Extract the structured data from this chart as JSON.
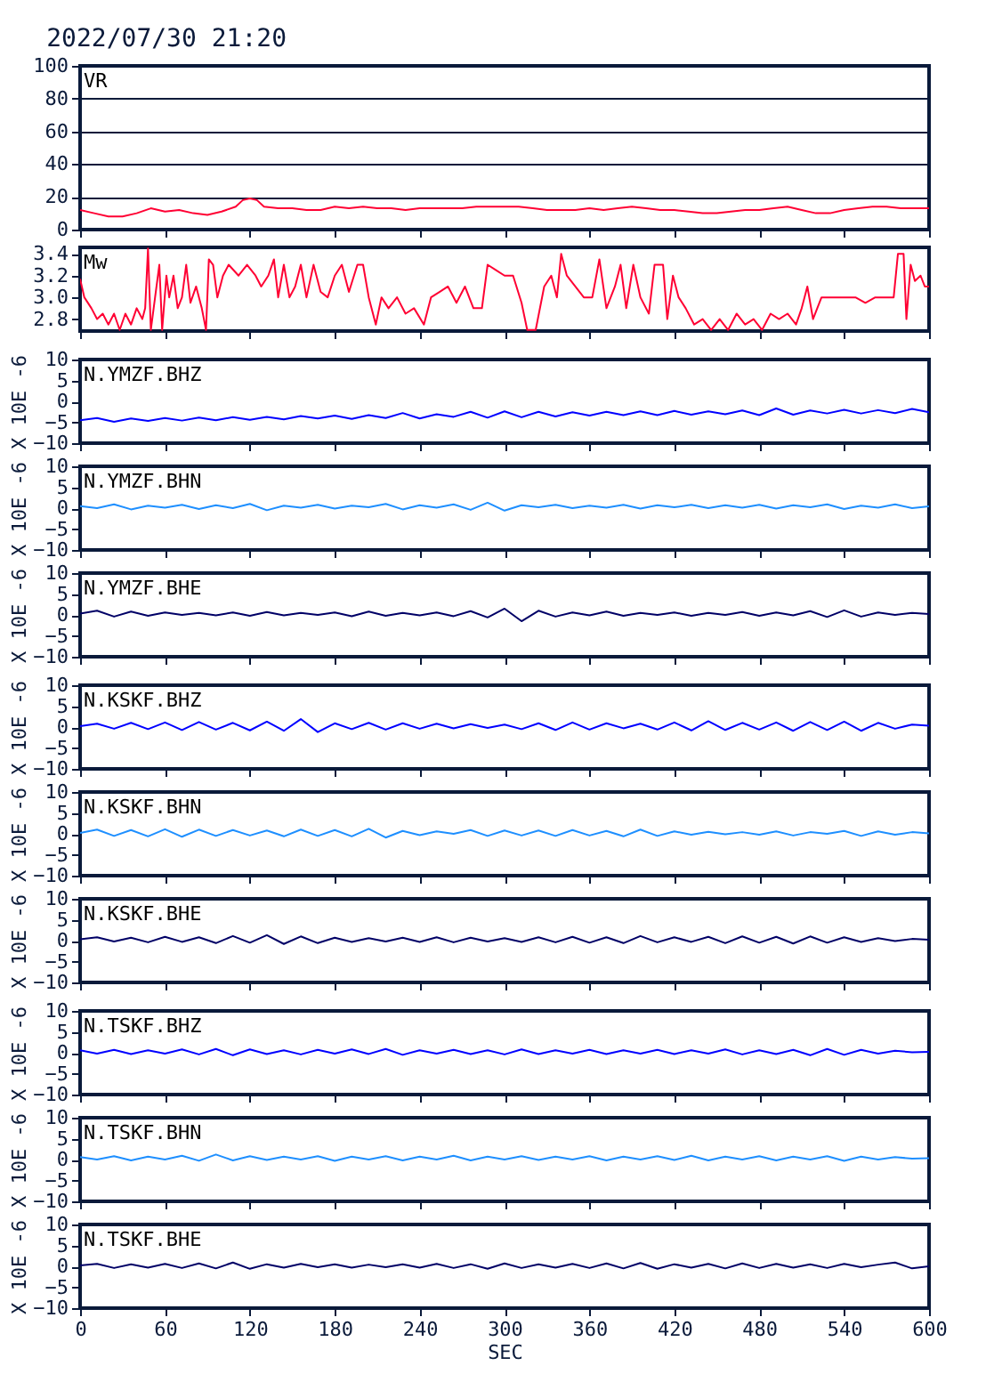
{
  "chart_data": [
    {
      "type": "line",
      "title": "2022/07/30 21:20",
      "x": [
        0,
        10,
        20,
        30,
        40,
        50,
        60,
        70,
        80,
        90,
        100,
        110,
        115,
        120,
        125,
        130,
        140,
        150,
        160,
        170,
        180,
        190,
        200,
        210,
        220,
        230,
        240,
        250,
        260,
        270,
        280,
        290,
        300,
        310,
        320,
        330,
        340,
        350,
        360,
        370,
        380,
        390,
        400,
        410,
        420,
        430,
        440,
        450,
        460,
        470,
        480,
        490,
        500,
        510,
        520,
        530,
        540,
        550,
        560,
        570,
        580,
        590,
        600
      ],
      "annotations": [
        "VR"
      ],
      "series": [
        {
          "color": "#ff0033",
          "values": [
            12,
            10,
            8,
            8,
            10,
            13,
            11,
            12,
            10,
            9,
            11,
            14,
            18,
            19,
            18,
            14,
            13,
            13,
            12,
            12,
            14,
            13,
            14,
            13,
            13,
            12,
            13,
            13,
            13,
            13,
            14,
            14,
            14,
            14,
            13,
            12,
            12,
            12,
            13,
            12,
            13,
            14,
            13,
            12,
            12,
            11,
            10,
            10,
            11,
            12,
            12,
            13,
            14,
            12,
            10,
            10,
            12,
            13,
            14,
            14,
            13,
            13,
            13
          ]
        }
      ],
      "xlim": [
        0,
        600
      ],
      "xticks": [
        0,
        60,
        120,
        180,
        240,
        300,
        360,
        420,
        480,
        540,
        600
      ],
      "ylim": [
        0,
        100
      ],
      "yticks": [
        0,
        20,
        40,
        60,
        80,
        100
      ],
      "grid": "y",
      "tick_labels": "y"
    },
    {
      "type": "line",
      "x": [
        0,
        3,
        8,
        12,
        16,
        20,
        24,
        28,
        32,
        36,
        40,
        44,
        46,
        48,
        50,
        53,
        56,
        58,
        61,
        63,
        66,
        69,
        72,
        75,
        78,
        82,
        86,
        89,
        91,
        94,
        97,
        101,
        105,
        112,
        118,
        124,
        128,
        133,
        137,
        140,
        144,
        148,
        152,
        156,
        160,
        165,
        170,
        175,
        180,
        185,
        190,
        196,
        200,
        204,
        209,
        213,
        218,
        224,
        230,
        236,
        243,
        248,
        254,
        260,
        266,
        272,
        278,
        284,
        288,
        294,
        300,
        306,
        312,
        316,
        322,
        328,
        333,
        337,
        340,
        344,
        350,
        356,
        362,
        367,
        372,
        378,
        382,
        386,
        391,
        396,
        402,
        406,
        412,
        415,
        419,
        423,
        428,
        434,
        440,
        446,
        452,
        458,
        464,
        470,
        476,
        482,
        488,
        494,
        500,
        506,
        510,
        514,
        518,
        524,
        530,
        540,
        548,
        555,
        562,
        570,
        575,
        578,
        582,
        584,
        587,
        590,
        594,
        597,
        600
      ],
      "annotations": [
        "Mw"
      ],
      "series": [
        {
          "color": "#ff0033",
          "values": [
            3.17,
            3.0,
            2.9,
            2.8,
            2.85,
            2.75,
            2.85,
            2.7,
            2.85,
            2.75,
            2.9,
            2.8,
            2.9,
            3.45,
            2.7,
            3.0,
            3.3,
            2.7,
            3.2,
            3.0,
            3.2,
            2.9,
            3.0,
            3.3,
            2.95,
            3.1,
            2.9,
            2.7,
            3.35,
            3.3,
            3.0,
            3.2,
            3.3,
            3.2,
            3.3,
            3.2,
            3.1,
            3.2,
            3.35,
            3.0,
            3.3,
            3.0,
            3.1,
            3.3,
            3.0,
            3.3,
            3.05,
            3.0,
            3.2,
            3.3,
            3.05,
            3.3,
            3.3,
            3.0,
            2.75,
            3.0,
            2.9,
            3.0,
            2.85,
            2.9,
            2.75,
            3.0,
            3.05,
            3.1,
            2.95,
            3.1,
            2.9,
            2.9,
            3.3,
            3.25,
            3.2,
            3.2,
            2.95,
            2.7,
            2.7,
            3.1,
            3.2,
            3.0,
            3.4,
            3.2,
            3.1,
            3.0,
            3.0,
            3.35,
            2.9,
            3.1,
            3.3,
            2.9,
            3.3,
            3.0,
            2.85,
            3.3,
            3.3,
            2.8,
            3.2,
            3.0,
            2.9,
            2.75,
            2.8,
            2.7,
            2.8,
            2.7,
            2.85,
            2.75,
            2.8,
            2.7,
            2.85,
            2.8,
            2.85,
            2.75,
            2.9,
            3.1,
            2.8,
            3.0,
            3.0,
            3.0,
            3.0,
            2.95,
            3.0,
            3.0,
            3.0,
            3.4,
            3.4,
            2.8,
            3.3,
            3.15,
            3.2,
            3.1,
            3.1
          ]
        }
      ],
      "xlim": [
        0,
        600
      ],
      "xticks": [
        0,
        60,
        120,
        180,
        240,
        300,
        360,
        420,
        480,
        540,
        600
      ],
      "ylim": [
        2.69,
        3.46
      ],
      "yticks": [
        2.8,
        {
          "value": 3,
          "label": "3.0"
        },
        3.2,
        3.4
      ],
      "tick_labels": "y"
    },
    {
      "type": "line",
      "ylabel": "X 10E -6",
      "x": [
        0,
        12,
        24,
        36,
        48,
        60,
        72,
        84,
        96,
        108,
        120,
        132,
        144,
        156,
        168,
        180,
        192,
        204,
        216,
        228,
        240,
        252,
        264,
        276,
        288,
        300,
        312,
        324,
        336,
        348,
        360,
        372,
        384,
        396,
        408,
        420,
        432,
        444,
        456,
        468,
        480,
        492,
        504,
        516,
        528,
        540,
        552,
        564,
        576,
        588,
        600
      ],
      "annotations": [
        "N.YMZF.BHZ"
      ],
      "series": [
        {
          "color": "#0000ff",
          "values": [
            -4.5,
            -4.0,
            -4.9,
            -4.1,
            -4.7,
            -4.0,
            -4.6,
            -3.9,
            -4.5,
            -3.8,
            -4.4,
            -3.7,
            -4.3,
            -3.5,
            -4.1,
            -3.4,
            -4.2,
            -3.3,
            -4.0,
            -2.8,
            -4.1,
            -3.1,
            -3.7,
            -2.5,
            -3.9,
            -2.4,
            -3.8,
            -2.5,
            -3.6,
            -2.6,
            -3.4,
            -2.5,
            -3.3,
            -2.4,
            -3.3,
            -2.3,
            -3.2,
            -2.4,
            -3.1,
            -2.2,
            -3.3,
            -1.7,
            -3.2,
            -2.2,
            -2.9,
            -2.0,
            -2.9,
            -2.1,
            -2.8,
            -1.8,
            -2.6
          ]
        }
      ],
      "xlim": [
        0,
        600
      ],
      "xticks": [
        0,
        60,
        120,
        180,
        240,
        300,
        360,
        420,
        480,
        540,
        600
      ],
      "ylim": [
        -10,
        10
      ],
      "yticks": [
        -10,
        -5,
        0,
        5,
        10
      ],
      "tick_labels": "y"
    },
    {
      "type": "line",
      "ylabel": "X 10E -6",
      "x": [
        0,
        12,
        24,
        36,
        48,
        60,
        72,
        84,
        96,
        108,
        120,
        132,
        144,
        156,
        168,
        180,
        192,
        204,
        216,
        228,
        240,
        252,
        264,
        276,
        288,
        300,
        312,
        324,
        336,
        348,
        360,
        372,
        384,
        396,
        408,
        420,
        432,
        444,
        456,
        468,
        480,
        492,
        504,
        516,
        528,
        540,
        552,
        564,
        576,
        588,
        600
      ],
      "annotations": [
        "N.YMZF.BHN"
      ],
      "series": [
        {
          "color": "#1e8fff",
          "values": [
            0.5,
            0.0,
            0.9,
            -0.3,
            0.6,
            0.1,
            0.8,
            -0.2,
            0.7,
            0.0,
            1.0,
            -0.5,
            0.6,
            0.1,
            0.8,
            -0.1,
            0.6,
            0.2,
            1.0,
            -0.3,
            0.7,
            0.1,
            0.9,
            -0.4,
            1.3,
            -0.6,
            0.7,
            0.2,
            0.8,
            0.0,
            0.6,
            0.1,
            0.8,
            -0.1,
            0.7,
            0.2,
            0.8,
            0.0,
            0.7,
            0.1,
            0.8,
            -0.1,
            0.7,
            0.2,
            0.9,
            -0.2,
            0.6,
            0.1,
            0.9,
            0.0,
            0.4
          ]
        }
      ],
      "xlim": [
        0,
        600
      ],
      "xticks": [
        0,
        60,
        120,
        180,
        240,
        300,
        360,
        420,
        480,
        540,
        600
      ],
      "ylim": [
        -10,
        10
      ],
      "yticks": [
        -10,
        -5,
        0,
        5,
        10
      ],
      "tick_labels": "y"
    },
    {
      "type": "line",
      "ylabel": "X 10E -6",
      "x": [
        0,
        12,
        24,
        36,
        48,
        60,
        72,
        84,
        96,
        108,
        120,
        132,
        144,
        156,
        168,
        180,
        192,
        204,
        216,
        228,
        240,
        252,
        264,
        276,
        288,
        300,
        312,
        324,
        336,
        348,
        360,
        372,
        384,
        396,
        408,
        420,
        432,
        444,
        456,
        468,
        480,
        492,
        504,
        516,
        528,
        540,
        552,
        564,
        576,
        588,
        600
      ],
      "annotations": [
        "N.YMZF.BHE"
      ],
      "series": [
        {
          "color": "#000066",
          "values": [
            0.3,
            1.0,
            -0.4,
            0.8,
            -0.2,
            0.6,
            0.0,
            0.5,
            -0.1,
            0.6,
            -0.2,
            0.7,
            -0.1,
            0.5,
            0.0,
            0.6,
            -0.3,
            0.8,
            -0.2,
            0.5,
            -0.1,
            0.6,
            -0.3,
            0.9,
            -0.6,
            1.5,
            -1.5,
            1.0,
            -0.4,
            0.6,
            -0.1,
            0.8,
            -0.2,
            0.5,
            0.0,
            0.6,
            -0.2,
            0.5,
            0.0,
            0.7,
            -0.2,
            0.6,
            -0.1,
            0.9,
            -0.5,
            1.1,
            -0.4,
            0.6,
            0.0,
            0.5,
            0.2
          ]
        }
      ],
      "xlim": [
        0,
        600
      ],
      "xticks": [
        0,
        60,
        120,
        180,
        240,
        300,
        360,
        420,
        480,
        540,
        600
      ],
      "ylim": [
        -10,
        10
      ],
      "yticks": [
        -10,
        -5,
        0,
        5,
        10
      ],
      "tick_labels": "y"
    },
    {
      "type": "line",
      "ylabel": "X 10E -6",
      "x": [
        0,
        12,
        24,
        36,
        48,
        60,
        72,
        84,
        96,
        108,
        120,
        132,
        144,
        156,
        168,
        180,
        192,
        204,
        216,
        228,
        240,
        252,
        264,
        276,
        288,
        300,
        312,
        324,
        336,
        348,
        360,
        372,
        384,
        396,
        408,
        420,
        432,
        444,
        456,
        468,
        480,
        492,
        504,
        516,
        528,
        540,
        552,
        564,
        576,
        588,
        600
      ],
      "annotations": [
        "N.KSKF.BHZ"
      ],
      "series": [
        {
          "color": "#0000ff",
          "values": [
            0.2,
            0.8,
            -0.4,
            1.0,
            -0.5,
            1.1,
            -0.7,
            1.2,
            -0.6,
            1.0,
            -0.8,
            1.3,
            -0.9,
            1.9,
            -1.2,
            0.9,
            -0.5,
            1.0,
            -0.6,
            0.9,
            -0.4,
            0.8,
            -0.3,
            0.7,
            -0.2,
            0.6,
            -0.5,
            0.9,
            -0.7,
            1.1,
            -0.6,
            0.9,
            -0.3,
            0.8,
            -0.6,
            1.1,
            -0.8,
            1.4,
            -0.7,
            1.0,
            -0.6,
            1.1,
            -0.9,
            1.2,
            -0.7,
            1.3,
            -0.9,
            1.0,
            -0.4,
            0.6,
            0.3
          ]
        }
      ],
      "xlim": [
        0,
        600
      ],
      "xticks": [
        0,
        60,
        120,
        180,
        240,
        300,
        360,
        420,
        480,
        540,
        600
      ],
      "ylim": [
        -10,
        10
      ],
      "yticks": [
        -10,
        -5,
        0,
        5,
        10
      ],
      "tick_labels": "y"
    },
    {
      "type": "line",
      "ylabel": "X 10E -6",
      "x": [
        0,
        12,
        24,
        36,
        48,
        60,
        72,
        84,
        96,
        108,
        120,
        132,
        144,
        156,
        168,
        180,
        192,
        204,
        216,
        228,
        240,
        252,
        264,
        276,
        288,
        300,
        312,
        324,
        336,
        348,
        360,
        372,
        384,
        396,
        408,
        420,
        432,
        444,
        456,
        468,
        480,
        492,
        504,
        516,
        528,
        540,
        552,
        564,
        576,
        588,
        600
      ],
      "annotations": [
        "N.KSKF.BHN"
      ],
      "series": [
        {
          "color": "#1e8fff",
          "values": [
            0.2,
            1.0,
            -0.5,
            0.9,
            -0.6,
            1.1,
            -0.7,
            1.0,
            -0.5,
            0.9,
            -0.4,
            0.8,
            -0.6,
            1.0,
            -0.5,
            0.9,
            -0.6,
            1.2,
            -0.9,
            0.7,
            -0.3,
            0.6,
            0.0,
            0.9,
            -0.5,
            0.8,
            -0.4,
            0.8,
            -0.5,
            0.9,
            -0.4,
            0.7,
            -0.6,
            1.0,
            -0.5,
            0.6,
            -0.2,
            0.5,
            -0.1,
            0.4,
            -0.2,
            0.6,
            -0.4,
            0.4,
            0.0,
            0.7,
            -0.5,
            0.6,
            -0.2,
            0.4,
            0.1
          ]
        }
      ],
      "xlim": [
        0,
        600
      ],
      "xticks": [
        0,
        60,
        120,
        180,
        240,
        300,
        360,
        420,
        480,
        540,
        600
      ],
      "ylim": [
        -10,
        10
      ],
      "yticks": [
        -10,
        -5,
        0,
        5,
        10
      ],
      "tick_labels": "y"
    },
    {
      "type": "line",
      "ylabel": "X 10E -6",
      "x": [
        0,
        12,
        24,
        36,
        48,
        60,
        72,
        84,
        96,
        108,
        120,
        132,
        144,
        156,
        168,
        180,
        192,
        204,
        216,
        228,
        240,
        252,
        264,
        276,
        288,
        300,
        312,
        324,
        336,
        348,
        360,
        372,
        384,
        396,
        408,
        420,
        432,
        444,
        456,
        468,
        480,
        492,
        504,
        516,
        528,
        540,
        552,
        564,
        576,
        588,
        600
      ],
      "annotations": [
        "N.KSKF.BHE"
      ],
      "series": [
        {
          "color": "#000066",
          "values": [
            0.3,
            0.8,
            -0.2,
            0.7,
            -0.4,
            0.9,
            -0.3,
            0.8,
            -0.6,
            1.1,
            -0.5,
            1.3,
            -0.8,
            1.0,
            -0.6,
            0.7,
            -0.3,
            0.6,
            -0.2,
            0.7,
            -0.3,
            0.8,
            -0.4,
            0.7,
            -0.2,
            0.6,
            -0.3,
            0.8,
            -0.4,
            0.9,
            -0.5,
            0.8,
            -0.6,
            1.1,
            -0.4,
            0.8,
            -0.3,
            0.9,
            -0.6,
            1.0,
            -0.5,
            0.9,
            -0.7,
            1.0,
            -0.5,
            0.8,
            -0.3,
            0.6,
            -0.1,
            0.4,
            0.2
          ]
        }
      ],
      "xlim": [
        0,
        600
      ],
      "xticks": [
        0,
        60,
        120,
        180,
        240,
        300,
        360,
        420,
        480,
        540,
        600
      ],
      "ylim": [
        -10,
        10
      ],
      "yticks": [
        -10,
        -5,
        0,
        5,
        10
      ],
      "tick_labels": "y"
    },
    {
      "type": "line",
      "ylabel": "X 10E -6",
      "x": [
        0,
        12,
        24,
        36,
        48,
        60,
        72,
        84,
        96,
        108,
        120,
        132,
        144,
        156,
        168,
        180,
        192,
        204,
        216,
        228,
        240,
        252,
        264,
        276,
        288,
        300,
        312,
        324,
        336,
        348,
        360,
        372,
        384,
        396,
        408,
        420,
        432,
        444,
        456,
        468,
        480,
        492,
        504,
        516,
        528,
        540,
        552,
        564,
        576,
        588,
        600
      ],
      "annotations": [
        "N.TSKF.BHZ"
      ],
      "series": [
        {
          "color": "#0000ff",
          "values": [
            0.6,
            -0.2,
            0.7,
            -0.3,
            0.6,
            -0.2,
            0.8,
            -0.4,
            0.9,
            -0.6,
            0.8,
            -0.3,
            0.6,
            -0.4,
            0.7,
            -0.2,
            0.8,
            -0.3,
            0.9,
            -0.5,
            0.6,
            -0.2,
            0.7,
            -0.3,
            0.6,
            -0.4,
            0.8,
            -0.3,
            0.6,
            -0.2,
            0.7,
            -0.3,
            0.6,
            -0.2,
            0.7,
            -0.3,
            0.6,
            -0.2,
            0.8,
            -0.4,
            0.6,
            -0.3,
            0.7,
            -0.6,
            0.9,
            -0.5,
            0.7,
            -0.2,
            0.5,
            0.1,
            0.2
          ]
        }
      ],
      "xlim": [
        0,
        600
      ],
      "xticks": [
        0,
        60,
        120,
        180,
        240,
        300,
        360,
        420,
        480,
        540,
        600
      ],
      "ylim": [
        -10,
        10
      ],
      "yticks": [
        -10,
        -5,
        0,
        5,
        10
      ],
      "tick_labels": "y"
    },
    {
      "type": "line",
      "ylabel": "X 10E -6",
      "x": [
        0,
        12,
        24,
        36,
        48,
        60,
        72,
        84,
        96,
        108,
        120,
        132,
        144,
        156,
        168,
        180,
        192,
        204,
        216,
        228,
        240,
        252,
        264,
        276,
        288,
        300,
        312,
        324,
        336,
        348,
        360,
        372,
        384,
        396,
        408,
        420,
        432,
        444,
        456,
        468,
        480,
        492,
        504,
        516,
        528,
        540,
        552,
        564,
        576,
        588,
        600
      ],
      "annotations": [
        "N.TSKF.BHN"
      ],
      "series": [
        {
          "color": "#1e8fff",
          "values": [
            0.6,
            0.0,
            0.8,
            -0.2,
            0.7,
            0.0,
            0.9,
            -0.3,
            1.2,
            -0.2,
            0.8,
            -0.1,
            0.7,
            0.0,
            0.8,
            -0.3,
            0.7,
            0.0,
            0.8,
            -0.2,
            0.7,
            0.0,
            0.9,
            -0.2,
            0.7,
            0.0,
            0.8,
            -0.1,
            0.7,
            0.0,
            0.8,
            -0.2,
            0.7,
            0.0,
            0.8,
            -0.1,
            0.9,
            -0.2,
            0.7,
            0.0,
            0.8,
            -0.2,
            0.7,
            0.0,
            0.8,
            -0.3,
            0.7,
            0.0,
            0.6,
            0.2,
            0.3
          ]
        }
      ],
      "xlim": [
        0,
        600
      ],
      "xticks": [
        0,
        60,
        120,
        180,
        240,
        300,
        360,
        420,
        480,
        540,
        600
      ],
      "ylim": [
        -10,
        10
      ],
      "yticks": [
        -10,
        -5,
        0,
        5,
        10
      ],
      "tick_labels": "y"
    },
    {
      "type": "line",
      "ylabel": "X 10E -6",
      "xlabel": "SEC",
      "x": [
        0,
        12,
        24,
        36,
        48,
        60,
        72,
        84,
        96,
        108,
        120,
        132,
        144,
        156,
        168,
        180,
        192,
        204,
        216,
        228,
        240,
        252,
        264,
        276,
        288,
        300,
        312,
        324,
        336,
        348,
        360,
        372,
        384,
        396,
        408,
        420,
        432,
        444,
        456,
        468,
        480,
        492,
        504,
        516,
        528,
        540,
        552,
        564,
        576,
        588,
        600
      ],
      "annotations": [
        "N.TSKF.BHE"
      ],
      "series": [
        {
          "color": "#000066",
          "values": [
            0.2,
            0.6,
            -0.4,
            0.5,
            -0.3,
            0.6,
            -0.4,
            0.7,
            -0.5,
            0.9,
            -0.6,
            0.5,
            -0.3,
            0.6,
            -0.2,
            0.5,
            -0.3,
            0.4,
            -0.2,
            0.5,
            -0.3,
            0.6,
            -0.4,
            0.5,
            -0.6,
            0.7,
            -0.4,
            0.5,
            -0.3,
            0.6,
            -0.4,
            0.7,
            -0.5,
            0.8,
            -0.6,
            0.5,
            -0.3,
            0.6,
            -0.5,
            0.7,
            -0.4,
            0.6,
            -0.3,
            0.5,
            -0.4,
            0.6,
            -0.2,
            0.4,
            0.9,
            -0.5,
            0.0
          ]
        }
      ],
      "xlim": [
        0,
        600
      ],
      "xticks": [
        0,
        60,
        120,
        180,
        240,
        300,
        360,
        420,
        480,
        540,
        600
      ],
      "ylim": [
        -10,
        10
      ],
      "yticks": [
        -10,
        -5,
        0,
        5,
        10
      ]
    }
  ]
}
